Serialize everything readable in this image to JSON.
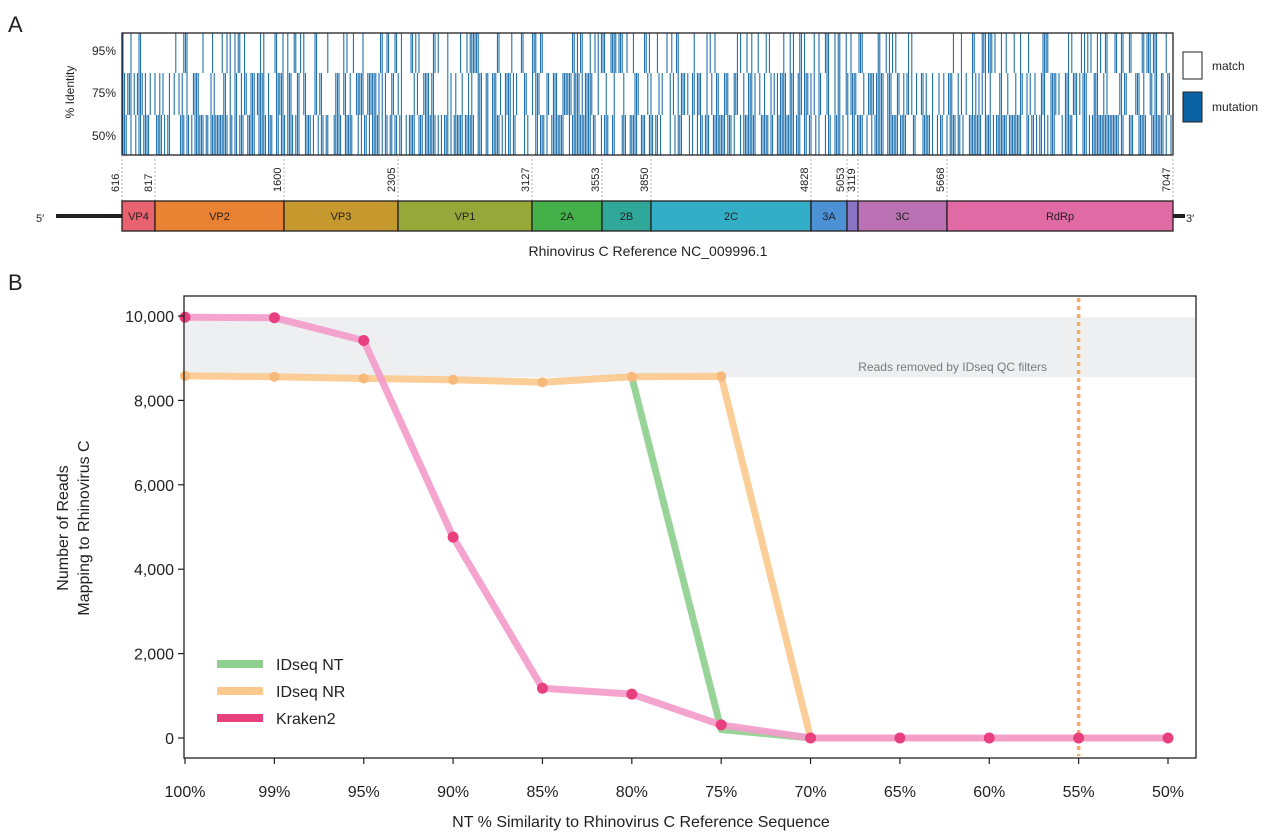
{
  "panel_a": {
    "label": "A",
    "ylabel": "% Identity",
    "yticks": [
      "95%",
      "75%",
      "50%"
    ],
    "legend": [
      {
        "label": "match",
        "color": "#ffffff"
      },
      {
        "label": "mutation",
        "color": "#0b63a6"
      }
    ],
    "positions": [
      "616",
      "817",
      "1600",
      "2305",
      "3127",
      "3553",
      "3850",
      "4828",
      "5053",
      "3119",
      "5668",
      "7047"
    ],
    "five_prime": "5′",
    "three_prime": "3′",
    "genome_title": "Rhinovirus C Reference NC_009996.1",
    "genes": [
      {
        "name": "VP4",
        "color": "#e8636f"
      },
      {
        "name": "VP2",
        "color": "#e98233"
      },
      {
        "name": "VP3",
        "color": "#c5992d"
      },
      {
        "name": "VP1",
        "color": "#97a83b"
      },
      {
        "name": "2A",
        "color": "#44b04a"
      },
      {
        "name": "2B",
        "color": "#2fa89a"
      },
      {
        "name": "2C",
        "color": "#32aec6"
      },
      {
        "name": "3A",
        "color": "#4c91d4"
      },
      {
        "name": "",
        "color": "#8a74c4"
      },
      {
        "name": "3C",
        "color": "#bb72b4"
      },
      {
        "name": "RdRp",
        "color": "#e06aa4"
      }
    ]
  },
  "panel_b": {
    "label": "B",
    "qc_band_label": "Reads removed by IDseq QC filters"
  },
  "chart_data": {
    "type": "line",
    "title": "",
    "xlabel": "NT % Similarity to Rhinovirus C Reference Sequence",
    "ylabel_lines": [
      "Number of Reads",
      "Mapping to Rhinovirus C"
    ],
    "categories": [
      "100%",
      "99%",
      "95%",
      "90%",
      "85%",
      "80%",
      "75%",
      "70%",
      "65%",
      "60%",
      "55%",
      "50%"
    ],
    "yticks": [
      "0",
      "2,000",
      "4,000",
      "6,000",
      "8,000",
      "10,000"
    ],
    "ylim": [
      -300,
      10500
    ],
    "series": [
      {
        "name": "IDseq NT",
        "color": "#8fd08f",
        "values": [
          null,
          null,
          null,
          null,
          null,
          8550,
          200,
          0,
          null,
          null,
          null,
          null
        ]
      },
      {
        "name": "IDseq NR",
        "color": "#fbc98e",
        "values": [
          8580,
          8560,
          8520,
          8490,
          8430,
          8560,
          8570,
          0,
          0,
          0,
          0,
          0
        ]
      },
      {
        "name": "Kraken2",
        "color": "#f39cca",
        "marker_color": "#e8407e",
        "values": [
          9970,
          9960,
          9420,
          4760,
          1180,
          1040,
          310,
          0,
          0,
          0,
          0,
          0
        ]
      }
    ],
    "qc_band": [
      8550,
      9970
    ],
    "vline_category": "55%",
    "legend_position": "bottom-left"
  }
}
